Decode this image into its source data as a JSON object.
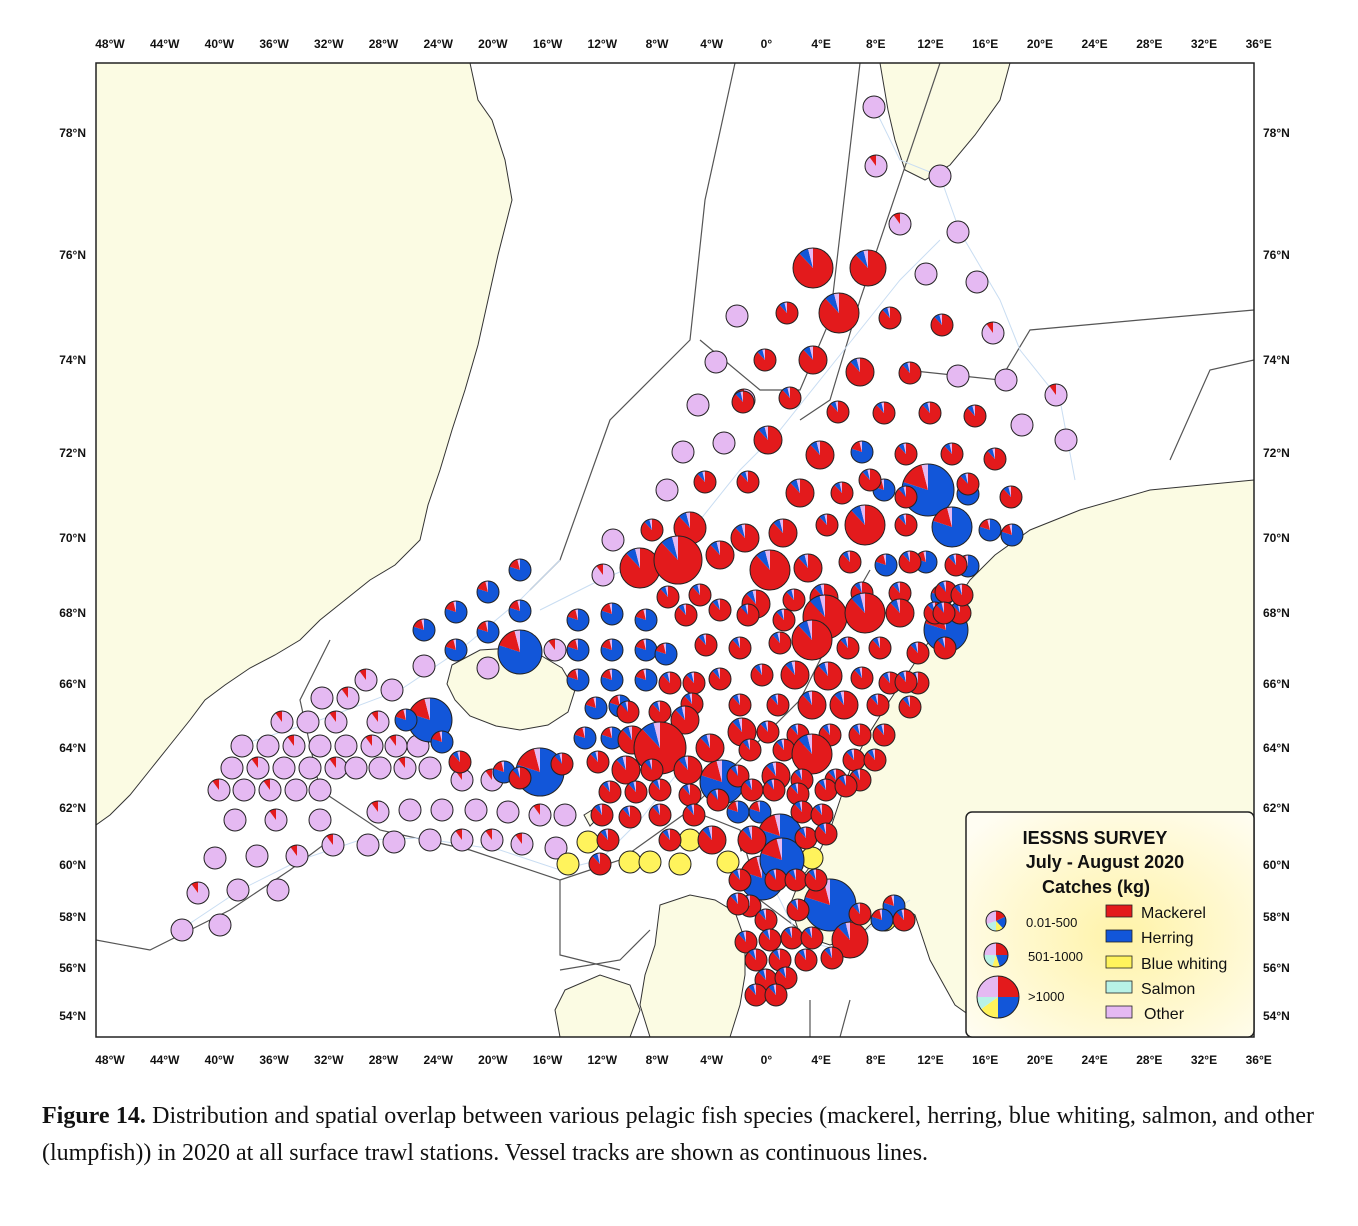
{
  "map": {
    "lon_ticks": [
      "48°W",
      "44°W",
      "40°W",
      "36°W",
      "32°W",
      "28°W",
      "24°W",
      "20°W",
      "16°W",
      "12°W",
      "8°W",
      "4°W",
      "0°",
      "4°E",
      "8°E",
      "12°E",
      "16°E",
      "20°E",
      "24°E",
      "28°E",
      "32°E",
      "36°E"
    ],
    "lat_ticks": [
      "78°N",
      "76°N",
      "74°N",
      "72°N",
      "70°N",
      "68°N",
      "66°N",
      "64°N",
      "62°N",
      "60°N",
      "58°N",
      "56°N",
      "54°N"
    ],
    "colors": {
      "land": "#fbfbe3",
      "sea": "#ffffff",
      "mackerel": "#e31a1c",
      "herring": "#1256d9",
      "blue_whiting": "#fff35c",
      "salmon": "#b8f2e6",
      "other": "#e5b9f2",
      "track": "#c9ddf2",
      "boundary": "#555555"
    }
  },
  "legend": {
    "title_line1": "IESSNS SURVEY",
    "title_line2": "July - August 2020",
    "title_line3": "Catches (kg)",
    "size_classes": [
      "0.01-500",
      "501-1000",
      ">1000"
    ],
    "species": [
      "Mackerel",
      "Herring",
      "Blue whiting",
      "Salmon",
      "Other"
    ]
  },
  "caption": {
    "label": "Figure 14.",
    "text": " Distribution and spatial overlap between various pelagic fish species (mackerel, herring, blue whiting, salmon, and other (lumpfish)) in 2020 at all surface trawl stations. Vessel tracks are shown as continuous lines."
  }
}
